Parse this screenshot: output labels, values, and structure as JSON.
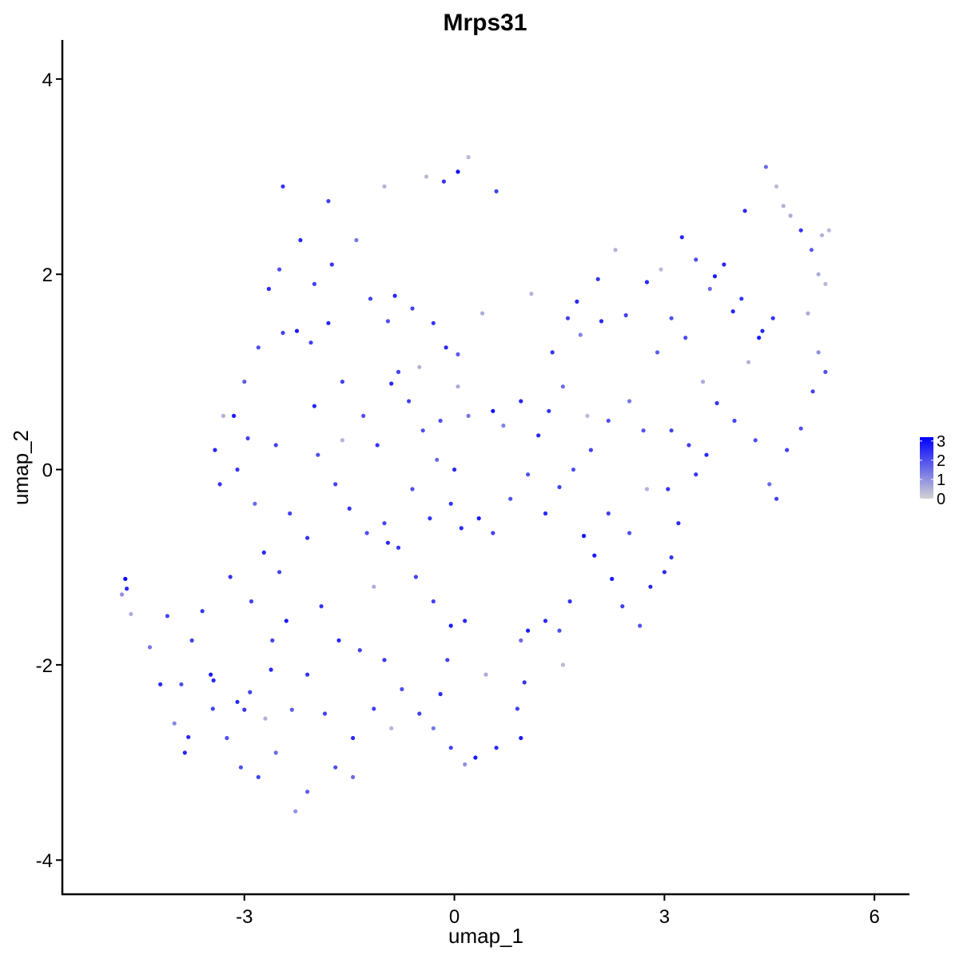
{
  "chart_data": {
    "type": "scatter",
    "title": "Mrps31",
    "xlabel": "umap_1",
    "ylabel": "umap_2",
    "xlim": [
      -5.6,
      6.5
    ],
    "ylim": [
      -4.35,
      4.4
    ],
    "xticks": [
      -3,
      0,
      3,
      6
    ],
    "yticks": [
      -4,
      -2,
      0,
      2,
      4
    ],
    "xtick_labels": [
      "-3",
      "0",
      "3",
      "6"
    ],
    "ytick_labels": [
      "-4",
      "-2",
      "0",
      "2",
      "4"
    ],
    "grid": false,
    "color_scale": {
      "low_color": "#d3d3d3",
      "high_color": "#0000ff",
      "min": 0,
      "max": 3.2,
      "breaks": [
        0,
        1,
        2,
        3
      ],
      "break_labels": [
        "0",
        "1",
        "2",
        "3"
      ],
      "legend_position": "right"
    },
    "points": [
      [
        -4.7,
        -1.12,
        3.2
      ],
      [
        -4.68,
        -1.22,
        2.6
      ],
      [
        -4.75,
        -1.28,
        1.0
      ],
      [
        -4.62,
        -1.48,
        0.6
      ],
      [
        -4.35,
        -1.82,
        1.4
      ],
      [
        -4.2,
        -2.2,
        2.6
      ],
      [
        -4.0,
        -2.6,
        1.2
      ],
      [
        -3.8,
        -2.74,
        2.6
      ],
      [
        -3.85,
        -2.9,
        2.6
      ],
      [
        -3.48,
        -2.1,
        2.8
      ],
      [
        -3.44,
        -2.16,
        2.6
      ],
      [
        -3.1,
        -2.38,
        2.6
      ],
      [
        -3.0,
        -2.46,
        2.4
      ],
      [
        -2.92,
        -2.28,
        2.2
      ],
      [
        -2.62,
        -2.05,
        2.6
      ],
      [
        -2.32,
        -2.46,
        1.8
      ],
      [
        -2.27,
        -3.5,
        1.0
      ],
      [
        -2.55,
        -2.9,
        1.6
      ],
      [
        -2.1,
        -3.3,
        1.8
      ],
      [
        -1.7,
        -3.05,
        2.0
      ],
      [
        -1.45,
        -3.15,
        1.6
      ],
      [
        -3.2,
        -1.1,
        2.4
      ],
      [
        -2.9,
        -1.35,
        2.2
      ],
      [
        -2.72,
        -0.85,
        2.6
      ],
      [
        -2.5,
        -1.05,
        2.2
      ],
      [
        -2.85,
        -0.35,
        1.6
      ],
      [
        -3.1,
        0.0,
        2.4
      ],
      [
        -2.95,
        0.32,
        2.2
      ],
      [
        -3.0,
        0.9,
        1.8
      ],
      [
        -3.15,
        0.55,
        2.8
      ],
      [
        -3.35,
        -0.15,
        2.4
      ],
      [
        -3.42,
        0.2,
        2.6
      ],
      [
        -2.8,
        1.25,
        2.0
      ],
      [
        -2.45,
        1.4,
        2.2
      ],
      [
        -2.25,
        1.42,
        2.8
      ],
      [
        -2.05,
        1.3,
        2.2
      ],
      [
        -1.8,
        1.5,
        2.6
      ],
      [
        -2.0,
        1.9,
        2.2
      ],
      [
        -2.5,
        2.05,
        2.0
      ],
      [
        -2.65,
        1.85,
        2.6
      ],
      [
        -2.2,
        2.35,
        2.6
      ],
      [
        -1.75,
        2.1,
        2.4
      ],
      [
        -1.4,
        2.35,
        1.4
      ],
      [
        -1.2,
        1.75,
        2.2
      ],
      [
        -0.85,
        1.78,
        2.6
      ],
      [
        -0.6,
        1.65,
        2.2
      ],
      [
        -0.95,
        1.52,
        2.0
      ],
      [
        -0.3,
        1.5,
        2.4
      ],
      [
        -0.12,
        1.25,
        2.6
      ],
      [
        0.05,
        1.18,
        1.8
      ],
      [
        -0.8,
        1.0,
        2.2
      ],
      [
        -0.9,
        0.88,
        2.6
      ],
      [
        -0.45,
        0.4,
        2.0
      ],
      [
        -0.2,
        0.5,
        2.0
      ],
      [
        0.05,
        0.85,
        0.6
      ],
      [
        0.2,
        0.55,
        1.4
      ],
      [
        0.55,
        0.6,
        3.0
      ],
      [
        0.7,
        0.45,
        1.2
      ],
      [
        0.95,
        0.7,
        2.6
      ],
      [
        1.2,
        0.35,
        2.6
      ],
      [
        1.35,
        0.6,
        2.4
      ],
      [
        1.55,
        0.85,
        1.6
      ],
      [
        1.4,
        1.2,
        2.4
      ],
      [
        1.62,
        1.55,
        2.2
      ],
      [
        1.75,
        1.72,
        2.6
      ],
      [
        2.05,
        1.95,
        2.4
      ],
      [
        1.8,
        1.38,
        1.2
      ],
      [
        2.1,
        1.52,
        2.6
      ],
      [
        2.45,
        1.58,
        2.2
      ],
      [
        2.75,
        1.92,
        2.6
      ],
      [
        2.9,
        1.2,
        1.8
      ],
      [
        3.1,
        1.55,
        2.0
      ],
      [
        3.3,
        1.35,
        2.0
      ],
      [
        3.25,
        2.38,
        2.6
      ],
      [
        3.45,
        2.15,
        2.0
      ],
      [
        3.65,
        1.85,
        1.6
      ],
      [
        3.85,
        2.1,
        2.6
      ],
      [
        3.72,
        1.98,
        2.8
      ],
      [
        3.98,
        1.62,
        2.6
      ],
      [
        4.1,
        1.75,
        2.4
      ],
      [
        4.15,
        2.65,
        2.6
      ],
      [
        4.35,
        1.35,
        2.8
      ],
      [
        4.4,
        1.42,
        2.6
      ],
      [
        4.55,
        1.55,
        2.4
      ],
      [
        4.45,
        3.1,
        1.6
      ],
      [
        4.6,
        2.9,
        0.4
      ],
      [
        4.7,
        2.7,
        0.5
      ],
      [
        4.8,
        2.6,
        0.6
      ],
      [
        4.95,
        2.45,
        2.4
      ],
      [
        5.1,
        2.25,
        1.8
      ],
      [
        5.2,
        2.0,
        0.6
      ],
      [
        5.3,
        1.9,
        0.4
      ],
      [
        5.25,
        2.4,
        0.5
      ],
      [
        5.35,
        2.45,
        0.4
      ],
      [
        5.05,
        1.6,
        0.6
      ],
      [
        5.2,
        1.2,
        1.0
      ],
      [
        5.3,
        1.0,
        2.0
      ],
      [
        5.12,
        0.8,
        2.2
      ],
      [
        4.95,
        0.42,
        2.0
      ],
      [
        4.75,
        0.2,
        2.2
      ],
      [
        4.5,
        -0.15,
        1.6
      ],
      [
        4.6,
        -0.3,
        2.2
      ],
      [
        4.3,
        0.3,
        2.0
      ],
      [
        4.0,
        0.5,
        2.2
      ],
      [
        3.75,
        0.68,
        2.4
      ],
      [
        3.6,
        0.15,
        2.6
      ],
      [
        3.45,
        -0.05,
        2.4
      ],
      [
        3.35,
        0.25,
        2.2
      ],
      [
        3.1,
        0.4,
        2.2
      ],
      [
        3.05,
        -0.2,
        2.4
      ],
      [
        3.2,
        -0.55,
        2.6
      ],
      [
        3.1,
        -0.9,
        2.4
      ],
      [
        3.0,
        -1.05,
        2.6
      ],
      [
        2.8,
        -1.2,
        2.6
      ],
      [
        2.65,
        -1.6,
        2.0
      ],
      [
        2.4,
        -1.4,
        2.2
      ],
      [
        2.25,
        -1.12,
        2.8
      ],
      [
        2.5,
        -0.65,
        2.0
      ],
      [
        2.2,
        -0.45,
        2.2
      ],
      [
        2.0,
        -0.88,
        2.8
      ],
      [
        1.85,
        -0.68,
        3.0
      ],
      [
        1.65,
        -1.35,
        2.4
      ],
      [
        1.5,
        -1.65,
        2.0
      ],
      [
        1.3,
        -1.55,
        2.6
      ],
      [
        1.05,
        -1.65,
        2.8
      ],
      [
        0.95,
        -1.75,
        1.6
      ],
      [
        1.0,
        -2.18,
        2.4
      ],
      [
        0.9,
        -2.45,
        2.2
      ],
      [
        0.95,
        -2.75,
        2.8
      ],
      [
        0.6,
        -2.85,
        2.6
      ],
      [
        0.3,
        -2.95,
        2.8
      ],
      [
        0.15,
        -3.02,
        1.0
      ],
      [
        -0.05,
        -2.85,
        2.2
      ],
      [
        -0.3,
        -2.65,
        1.4
      ],
      [
        -0.2,
        -2.3,
        2.6
      ],
      [
        -0.1,
        -1.95,
        2.2
      ],
      [
        0.15,
        -1.55,
        2.6
      ],
      [
        -0.05,
        -1.6,
        2.8
      ],
      [
        -0.3,
        -1.35,
        2.2
      ],
      [
        -0.55,
        -1.1,
        2.2
      ],
      [
        -0.8,
        -0.8,
        2.4
      ],
      [
        -0.95,
        -0.75,
        2.6
      ],
      [
        -1.0,
        -0.55,
        2.2
      ],
      [
        -0.6,
        -0.2,
        2.0
      ],
      [
        -0.25,
        0.1,
        1.6
      ],
      [
        0.0,
        0.0,
        2.6
      ],
      [
        -0.05,
        -0.35,
        2.4
      ],
      [
        -0.35,
        -0.5,
        2.4
      ],
      [
        0.1,
        -0.6,
        2.6
      ],
      [
        0.35,
        -0.5,
        2.8
      ],
      [
        0.55,
        -0.65,
        2.2
      ],
      [
        0.8,
        -0.3,
        2.0
      ],
      [
        1.05,
        -0.05,
        2.0
      ],
      [
        1.3,
        -0.45,
        2.6
      ],
      [
        1.5,
        -0.18,
        2.2
      ],
      [
        1.7,
        0.0,
        2.0
      ],
      [
        1.95,
        0.2,
        2.2
      ],
      [
        2.2,
        0.5,
        2.0
      ],
      [
        2.5,
        0.7,
        1.4
      ],
      [
        2.7,
        0.4,
        2.0
      ],
      [
        -1.25,
        -0.65,
        2.0
      ],
      [
        -1.5,
        -0.4,
        2.4
      ],
      [
        -1.7,
        -0.15,
        2.2
      ],
      [
        -1.95,
        0.15,
        2.0
      ],
      [
        -2.1,
        -0.7,
        2.4
      ],
      [
        -2.35,
        -0.45,
        2.2
      ],
      [
        -2.55,
        0.25,
        2.2
      ],
      [
        -2.0,
        0.65,
        2.6
      ],
      [
        -1.6,
        0.9,
        2.2
      ],
      [
        -1.3,
        0.55,
        2.0
      ],
      [
        -1.1,
        0.25,
        2.4
      ],
      [
        -0.65,
        0.7,
        2.2
      ],
      [
        -1.9,
        -1.4,
        2.4
      ],
      [
        -1.65,
        -1.75,
        2.6
      ],
      [
        -1.35,
        -1.85,
        2.2
      ],
      [
        -1.0,
        -1.95,
        2.4
      ],
      [
        -0.75,
        -2.25,
        2.0
      ],
      [
        -0.5,
        -2.5,
        2.2
      ],
      [
        -1.15,
        -2.45,
        2.2
      ],
      [
        -1.45,
        -2.75,
        2.6
      ],
      [
        -1.85,
        -2.5,
        2.2
      ],
      [
        -2.1,
        -2.1,
        2.4
      ],
      [
        -2.4,
        -1.55,
        2.8
      ],
      [
        -2.6,
        -1.75,
        2.2
      ],
      [
        -3.6,
        -1.45,
        2.4
      ],
      [
        -3.75,
        -1.75,
        2.2
      ],
      [
        -3.9,
        -2.2,
        2.0
      ],
      [
        -4.1,
        -1.5,
        2.2
      ],
      [
        -3.45,
        -2.45,
        2.2
      ],
      [
        -3.25,
        -2.75,
        2.0
      ],
      [
        -3.05,
        -3.05,
        2.0
      ],
      [
        -2.8,
        -3.15,
        2.2
      ],
      [
        -1.15,
        -1.2,
        0.6
      ],
      [
        -1.6,
        0.3,
        0.5
      ],
      [
        -0.5,
        1.05,
        0.5
      ],
      [
        0.4,
        1.6,
        0.6
      ],
      [
        1.1,
        1.8,
        0.5
      ],
      [
        2.3,
        2.25,
        0.5
      ],
      [
        2.95,
        2.05,
        0.4
      ],
      [
        -3.3,
        0.55,
        0.5
      ],
      [
        -2.7,
        -2.55,
        0.5
      ],
      [
        -0.9,
        -2.65,
        0.5
      ],
      [
        0.45,
        -2.1,
        0.6
      ],
      [
        1.55,
        -2.0,
        0.4
      ],
      [
        2.75,
        -0.2,
        0.5
      ],
      [
        3.55,
        0.9,
        0.6
      ],
      [
        4.2,
        1.1,
        0.5
      ],
      [
        1.9,
        0.55,
        0.4
      ],
      [
        -1.0,
        2.9,
        0.5
      ],
      [
        -0.4,
        3.0,
        0.4
      ],
      [
        0.2,
        3.2,
        0.4
      ],
      [
        0.6,
        2.85,
        2.2
      ],
      [
        -0.15,
        2.95,
        2.4
      ],
      [
        0.05,
        3.05,
        3.0
      ],
      [
        -1.8,
        2.75,
        2.2
      ],
      [
        -2.45,
        2.9,
        2.4
      ]
    ]
  }
}
